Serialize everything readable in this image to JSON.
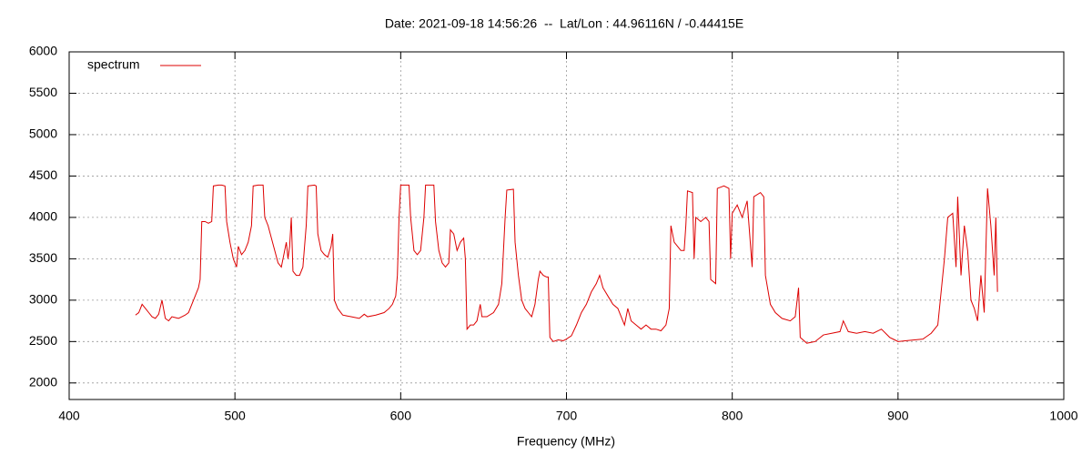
{
  "chart_data": {
    "type": "line",
    "title": "Date: 2021-09-18 14:56:26  --  Lat/Lon : 44.96116N / -0.44415E",
    "xlabel": "Frequency (MHz)",
    "xlim": [
      400,
      1000
    ],
    "xticks": [
      400,
      500,
      600,
      700,
      800,
      900,
      1000
    ],
    "ylim": [
      1800,
      6000
    ],
    "yticks": [
      2000,
      2500,
      3000,
      3500,
      4000,
      4500,
      5000,
      5500,
      6000
    ],
    "grid": true,
    "legend": "top-left",
    "x": [
      440,
      442,
      444,
      446,
      448,
      450,
      452,
      454,
      456,
      458,
      460,
      462,
      464,
      466,
      468,
      470,
      472,
      474,
      476,
      478,
      479,
      480,
      482,
      484,
      486,
      487,
      490,
      492,
      494,
      495,
      497,
      499,
      501,
      502,
      504,
      506,
      508,
      510,
      511,
      514,
      517,
      518,
      520,
      522,
      524,
      526,
      528,
      530,
      531,
      532,
      533,
      534,
      535,
      537,
      539,
      541,
      543,
      544,
      548,
      549,
      550,
      552,
      554,
      556,
      558,
      559,
      560,
      562,
      565,
      570,
      575,
      578,
      580,
      585,
      590,
      593,
      595,
      597,
      598,
      599,
      600,
      605,
      606,
      608,
      610,
      612,
      614,
      615,
      620,
      621,
      623,
      625,
      627,
      629,
      630,
      632,
      634,
      636,
      638,
      639,
      640,
      642,
      644,
      646,
      648,
      649,
      652,
      656,
      659,
      661,
      663,
      664,
      668,
      669,
      671,
      673,
      675,
      677,
      679,
      681,
      683,
      684,
      686,
      688,
      689,
      690,
      692,
      695,
      698,
      700,
      703,
      706,
      709,
      712,
      715,
      718,
      720,
      722,
      725,
      728,
      731,
      733,
      735,
      737,
      739,
      742,
      745,
      748,
      751,
      754,
      757,
      760,
      762,
      763,
      765,
      767,
      769,
      771,
      772,
      773,
      776,
      777,
      778,
      781,
      784,
      786,
      787,
      790,
      791,
      795,
      798,
      799,
      800,
      803,
      806,
      809,
      812,
      813,
      817,
      819,
      820,
      823,
      826,
      830,
      835,
      838,
      840,
      841,
      845,
      850,
      855,
      860,
      865,
      867,
      870,
      875,
      880,
      885,
      890,
      895,
      898,
      900,
      905,
      910,
      915,
      920,
      924,
      926,
      928,
      930,
      933,
      935,
      936,
      938,
      940,
      942,
      944,
      946,
      948,
      950,
      952,
      954,
      956,
      958,
      959,
      960
    ],
    "series": [
      {
        "name": "spectrum",
        "color": "#dd0000",
        "values": [
          2820,
          2850,
          2950,
          2900,
          2850,
          2800,
          2780,
          2830,
          3000,
          2780,
          2750,
          2800,
          2790,
          2780,
          2800,
          2820,
          2850,
          2950,
          3050,
          3150,
          3250,
          3950,
          3950,
          3930,
          3950,
          4380,
          4390,
          4390,
          4380,
          3950,
          3700,
          3500,
          3400,
          3650,
          3550,
          3600,
          3700,
          3900,
          4380,
          4390,
          4390,
          4000,
          3900,
          3750,
          3600,
          3450,
          3400,
          3600,
          3700,
          3500,
          3650,
          4000,
          3350,
          3300,
          3300,
          3400,
          3900,
          4380,
          4390,
          4380,
          3800,
          3600,
          3550,
          3520,
          3650,
          3800,
          3000,
          2900,
          2820,
          2800,
          2780,
          2830,
          2800,
          2820,
          2850,
          2900,
          2950,
          3050,
          3300,
          4000,
          4390,
          4390,
          4000,
          3600,
          3550,
          3600,
          4000,
          4390,
          4390,
          3950,
          3600,
          3450,
          3400,
          3450,
          3850,
          3800,
          3600,
          3700,
          3750,
          3500,
          2650,
          2700,
          2700,
          2750,
          2950,
          2800,
          2800,
          2850,
          2950,
          3200,
          4000,
          4330,
          4340,
          3700,
          3300,
          3000,
          2900,
          2850,
          2800,
          2950,
          3250,
          3350,
          3300,
          3280,
          3280,
          2550,
          2500,
          2520,
          2510,
          2530,
          2570,
          2700,
          2850,
          2950,
          3100,
          3200,
          3300,
          3150,
          3050,
          2950,
          2900,
          2800,
          2700,
          2900,
          2750,
          2700,
          2650,
          2700,
          2650,
          2650,
          2630,
          2700,
          2900,
          3900,
          3700,
          3650,
          3600,
          3600,
          3900,
          4320,
          4300,
          3500,
          4000,
          3950,
          4000,
          3950,
          3250,
          3200,
          4350,
          4380,
          4350,
          3500,
          4050,
          4150,
          4000,
          4200,
          3400,
          4250,
          4300,
          4250,
          3300,
          2950,
          2850,
          2780,
          2750,
          2800,
          3150,
          2550,
          2480,
          2500,
          2580,
          2600,
          2620,
          2750,
          2620,
          2600,
          2620,
          2600,
          2650,
          2550,
          2520,
          2500,
          2510,
          2520,
          2530,
          2600,
          2700,
          3100,
          3500,
          4000,
          4050,
          3400,
          4250,
          3300,
          3900,
          3600,
          3000,
          2900,
          2750,
          3300,
          2850,
          4350,
          3900,
          3300,
          4000,
          3100
        ]
      }
    ]
  }
}
